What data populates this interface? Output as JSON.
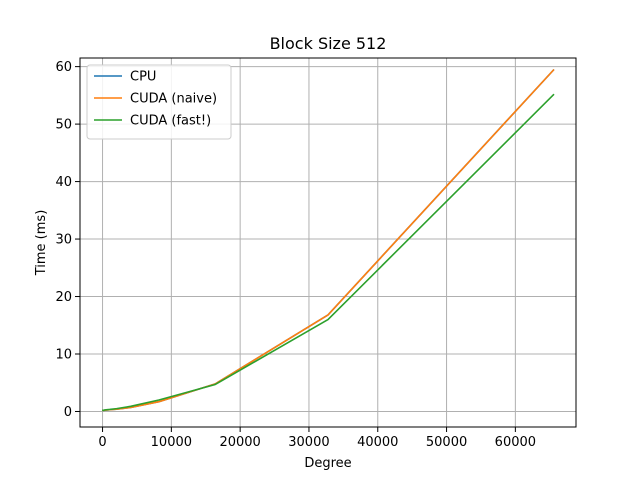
{
  "chart_data": {
    "type": "line",
    "title": "Block Size 512",
    "xlabel": "Degree",
    "ylabel": "Time (ms)",
    "xlim": [
      -3277,
      68813
    ],
    "ylim": [
      -2.7,
      61.5
    ],
    "xticks": [
      0,
      10000,
      20000,
      30000,
      40000,
      50000,
      60000
    ],
    "yticks": [
      0,
      10,
      20,
      30,
      40,
      50,
      60
    ],
    "grid": true,
    "legend_position": "top-left",
    "x": [
      64,
      128,
      256,
      512,
      1024,
      2048,
      4096,
      8192,
      16384,
      32768,
      65536
    ],
    "series": [
      {
        "name": "CPU",
        "color": "#1f77b4",
        "values": [
          0.2,
          0.2,
          0.2,
          0.25,
          0.3,
          0.4,
          0.7,
          1.7,
          4.8,
          16.8,
          59.4
        ]
      },
      {
        "name": "CUDA (naive)",
        "color": "#ff7f0e",
        "values": [
          0.2,
          0.2,
          0.2,
          0.25,
          0.3,
          0.4,
          0.7,
          1.7,
          4.8,
          16.8,
          59.4
        ]
      },
      {
        "name": "CUDA (fast!)",
        "color": "#2ca02c",
        "values": [
          0.2,
          0.2,
          0.25,
          0.3,
          0.35,
          0.5,
          0.9,
          2.0,
          4.7,
          16.0,
          55.1
        ]
      }
    ]
  }
}
